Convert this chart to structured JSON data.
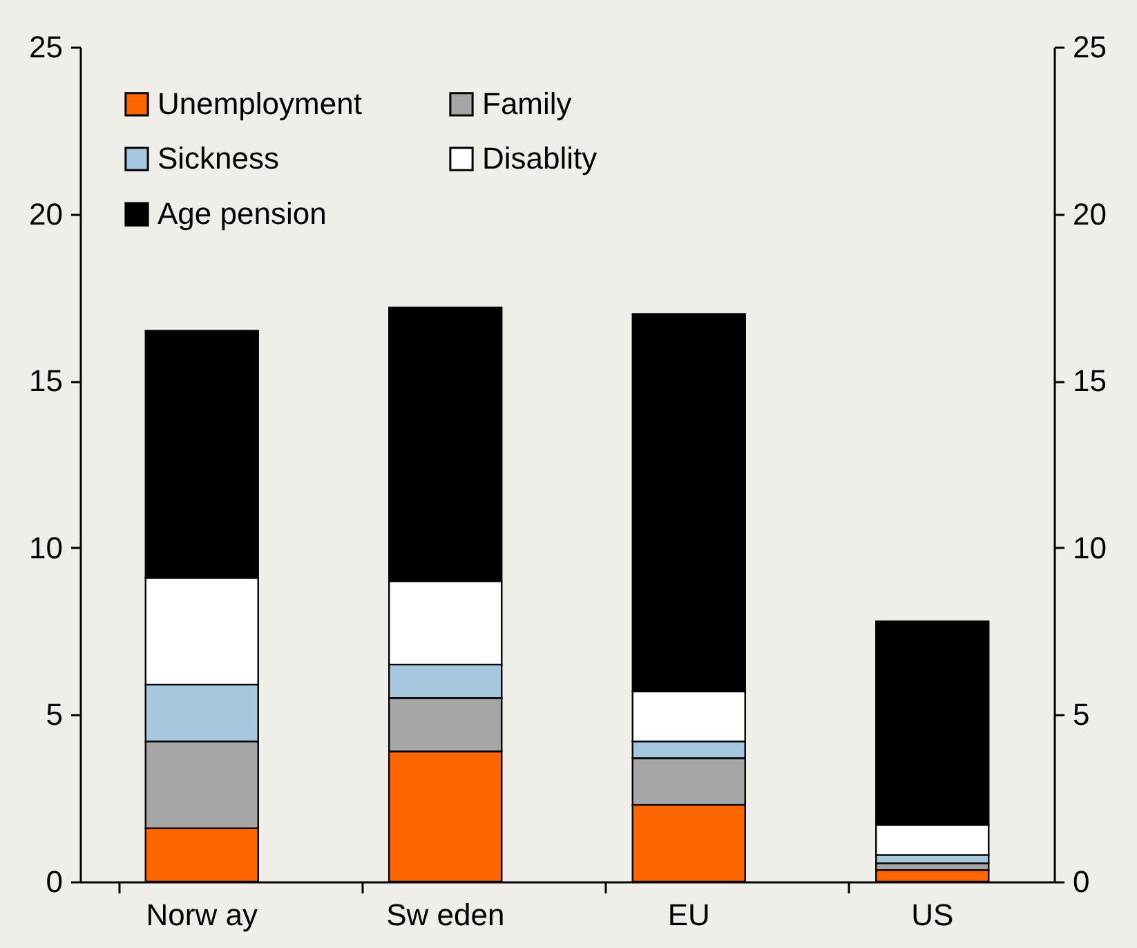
{
  "chart_data": {
    "type": "bar",
    "stacked": true,
    "categories": [
      "Norw ay",
      "Sw eden",
      "EU",
      "US"
    ],
    "series": [
      {
        "name": "Unemployment",
        "color": "#ff6600",
        "values": [
          1.6,
          3.9,
          2.3,
          0.35
        ]
      },
      {
        "name": "Family",
        "color": "#a6a6a6",
        "values": [
          2.6,
          1.6,
          1.4,
          0.2
        ]
      },
      {
        "name": "Sickness",
        "color": "#a6c8de",
        "values": [
          1.7,
          1.0,
          0.5,
          0.25
        ]
      },
      {
        "name": "Disablity",
        "color": "#ffffff",
        "values": [
          3.2,
          2.5,
          1.5,
          0.9
        ]
      },
      {
        "name": "Age pension",
        "color": "#000000",
        "values": [
          7.4,
          8.2,
          11.3,
          6.1
        ]
      }
    ],
    "ylim": [
      0,
      25
    ],
    "yticks": [
      0,
      5,
      10,
      15,
      20,
      25
    ],
    "y2lim": [
      0,
      25
    ],
    "y2ticks": [
      0,
      5,
      10,
      15,
      20,
      25
    ],
    "legend": "top left",
    "grid": false
  }
}
